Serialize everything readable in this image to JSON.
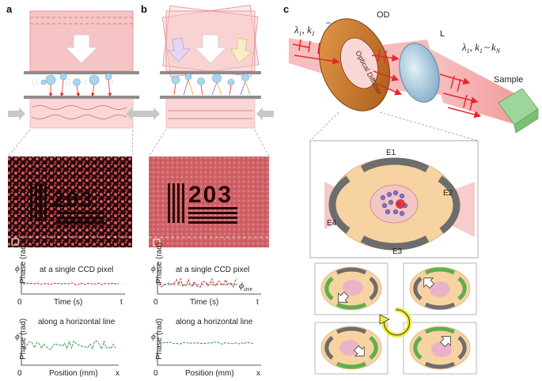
{
  "panels": {
    "a": "a",
    "b": "b",
    "c": "c"
  },
  "images": {
    "a_number": "203",
    "b_number": "203"
  },
  "plots": {
    "a_top": {
      "title": "at a single CCD pixel",
      "ylabel": "Phase (rad)",
      "symbol": "ϕ",
      "xlabel": "Time (s)",
      "origin": "0",
      "xend": "t"
    },
    "a_bottom": {
      "title": "along a horizontal line",
      "ylabel": "Phase (rad)",
      "symbol": "ϕ",
      "xlabel": "Position (mm)",
      "origin": "0",
      "xend": "x"
    },
    "b_top": {
      "title": "at a single CCD pixel",
      "ylabel": "Phase (rad)",
      "symbol": "ϕ",
      "xlabel": "Time (s)",
      "origin": "0",
      "xend": "t",
      "annotation_sym": "ϕ",
      "annotation_sub": "ave"
    },
    "b_bottom": {
      "title": "along a horizontal line",
      "ylabel": "Phase (rad)",
      "symbol": "ϕ",
      "xlabel": "Position (mm)",
      "origin": "0",
      "xend": "x"
    }
  },
  "panel_c": {
    "lambda_in": "λ",
    "lambda_in_sub": "1",
    "k_in": "k",
    "k_in_sub": "1",
    "od_label": "OD",
    "l_label": "L",
    "diffuser_text": "Optical Diffuser",
    "lambda_out": "λ",
    "lambda_out_sub": "1",
    "k_out1": "k",
    "k_out1_sub": "1",
    "approx": "~",
    "k_out2": "k",
    "k_out2_sub": "N",
    "sample_label": "Sample",
    "electrodes": {
      "e1": "E1",
      "e2": "E2",
      "e3": "E3",
      "e4": "E4"
    }
  },
  "colors": {
    "beam": "#f2a3a3",
    "arrow_red": "#e8262b",
    "electrode_gray": "#6d6d6d",
    "electrode_green": "#5fae4e",
    "disk_orange": "#f6d3a0",
    "trace_red": "#c8282c",
    "trace_green": "#2e9a48"
  }
}
